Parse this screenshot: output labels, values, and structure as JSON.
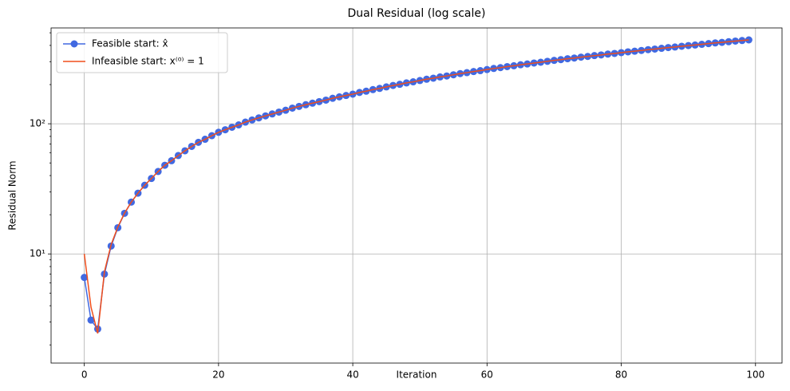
{
  "chart_data": {
    "type": "line",
    "title": "Dual Residual (log scale)",
    "xlabel": "Iteration",
    "ylabel": "Residual Norm",
    "x": [
      0,
      1,
      2,
      3,
      4,
      5,
      6,
      7,
      8,
      9,
      10,
      11,
      12,
      13,
      14,
      15,
      16,
      17,
      18,
      19,
      20,
      21,
      22,
      23,
      24,
      25,
      26,
      27,
      28,
      29,
      30,
      31,
      32,
      33,
      34,
      35,
      36,
      37,
      38,
      39,
      40,
      41,
      42,
      43,
      44,
      45,
      46,
      47,
      48,
      49,
      50,
      51,
      52,
      53,
      54,
      55,
      56,
      57,
      58,
      59,
      60,
      61,
      62,
      63,
      64,
      65,
      66,
      67,
      68,
      69,
      70,
      71,
      72,
      73,
      74,
      75,
      76,
      77,
      78,
      79,
      80,
      81,
      82,
      83,
      84,
      85,
      86,
      87,
      88,
      89,
      90,
      91,
      92,
      93,
      94,
      95,
      96,
      97,
      98,
      99
    ],
    "series": [
      {
        "name": "Feasible start: x̂",
        "color": "#4169e1",
        "marker": true,
        "values": [
          6.6,
          3.1,
          2.65,
          7.0,
          11.5,
          15.9,
          20.5,
          25,
          29.3,
          33.7,
          38,
          43,
          48,
          52,
          57,
          62,
          67,
          72,
          76,
          81,
          86,
          90,
          94,
          98,
          103,
          107,
          111,
          115,
          119,
          123,
          127,
          132,
          136,
          140,
          144,
          148,
          152,
          157,
          161,
          165,
          169,
          174,
          178,
          183,
          187,
          192,
          197,
          201,
          206,
          210,
          215,
          220,
          224,
          229,
          233,
          238,
          243,
          247,
          252,
          256,
          261,
          266,
          270,
          275,
          279,
          284,
          288,
          293,
          297,
          302,
          307,
          311,
          316,
          320,
          325,
          329,
          334,
          338,
          343,
          347,
          352,
          357,
          361,
          366,
          371,
          375,
          380,
          385,
          389,
          394,
          399,
          403,
          408,
          413,
          418,
          422,
          427,
          432,
          436,
          441
        ]
      },
      {
        "name": "Infeasible start: x⁽⁰⁾ = 1",
        "color": "#f04e1c",
        "marker": false,
        "values": [
          10,
          3.9,
          2.45,
          7.3,
          11.8,
          16.1,
          20.6,
          25,
          29.3,
          33.7,
          38,
          43,
          48,
          52,
          57,
          62,
          67,
          72,
          76,
          81,
          86,
          90,
          94,
          98,
          103,
          107,
          111,
          115,
          119,
          123,
          127,
          132,
          136,
          140,
          144,
          148,
          152,
          157,
          161,
          165,
          169,
          174,
          178,
          183,
          187,
          192,
          197,
          201,
          206,
          210,
          215,
          220,
          224,
          229,
          233,
          238,
          243,
          247,
          252,
          256,
          261,
          266,
          270,
          275,
          279,
          284,
          288,
          293,
          297,
          302,
          307,
          311,
          316,
          320,
          325,
          329,
          334,
          338,
          343,
          347,
          352,
          357,
          361,
          366,
          371,
          375,
          380,
          385,
          389,
          394,
          399,
          403,
          408,
          413,
          418,
          422,
          427,
          432,
          436,
          441
        ]
      }
    ],
    "xlim": [
      -4.95,
      103.95
    ],
    "xticks": [
      0,
      20,
      40,
      60,
      80,
      100
    ],
    "ylim": [
      1.45,
      545
    ],
    "ylog": true,
    "yticks": [
      {
        "value": 10,
        "label": "10¹"
      },
      {
        "value": 100,
        "label": "10²"
      }
    ],
    "yminorticks": [
      2,
      3,
      4,
      5,
      6,
      7,
      8,
      9,
      20,
      30,
      40,
      50,
      60,
      70,
      80,
      90,
      200,
      300,
      400,
      500
    ],
    "grid": true,
    "legend": "upper left"
  }
}
